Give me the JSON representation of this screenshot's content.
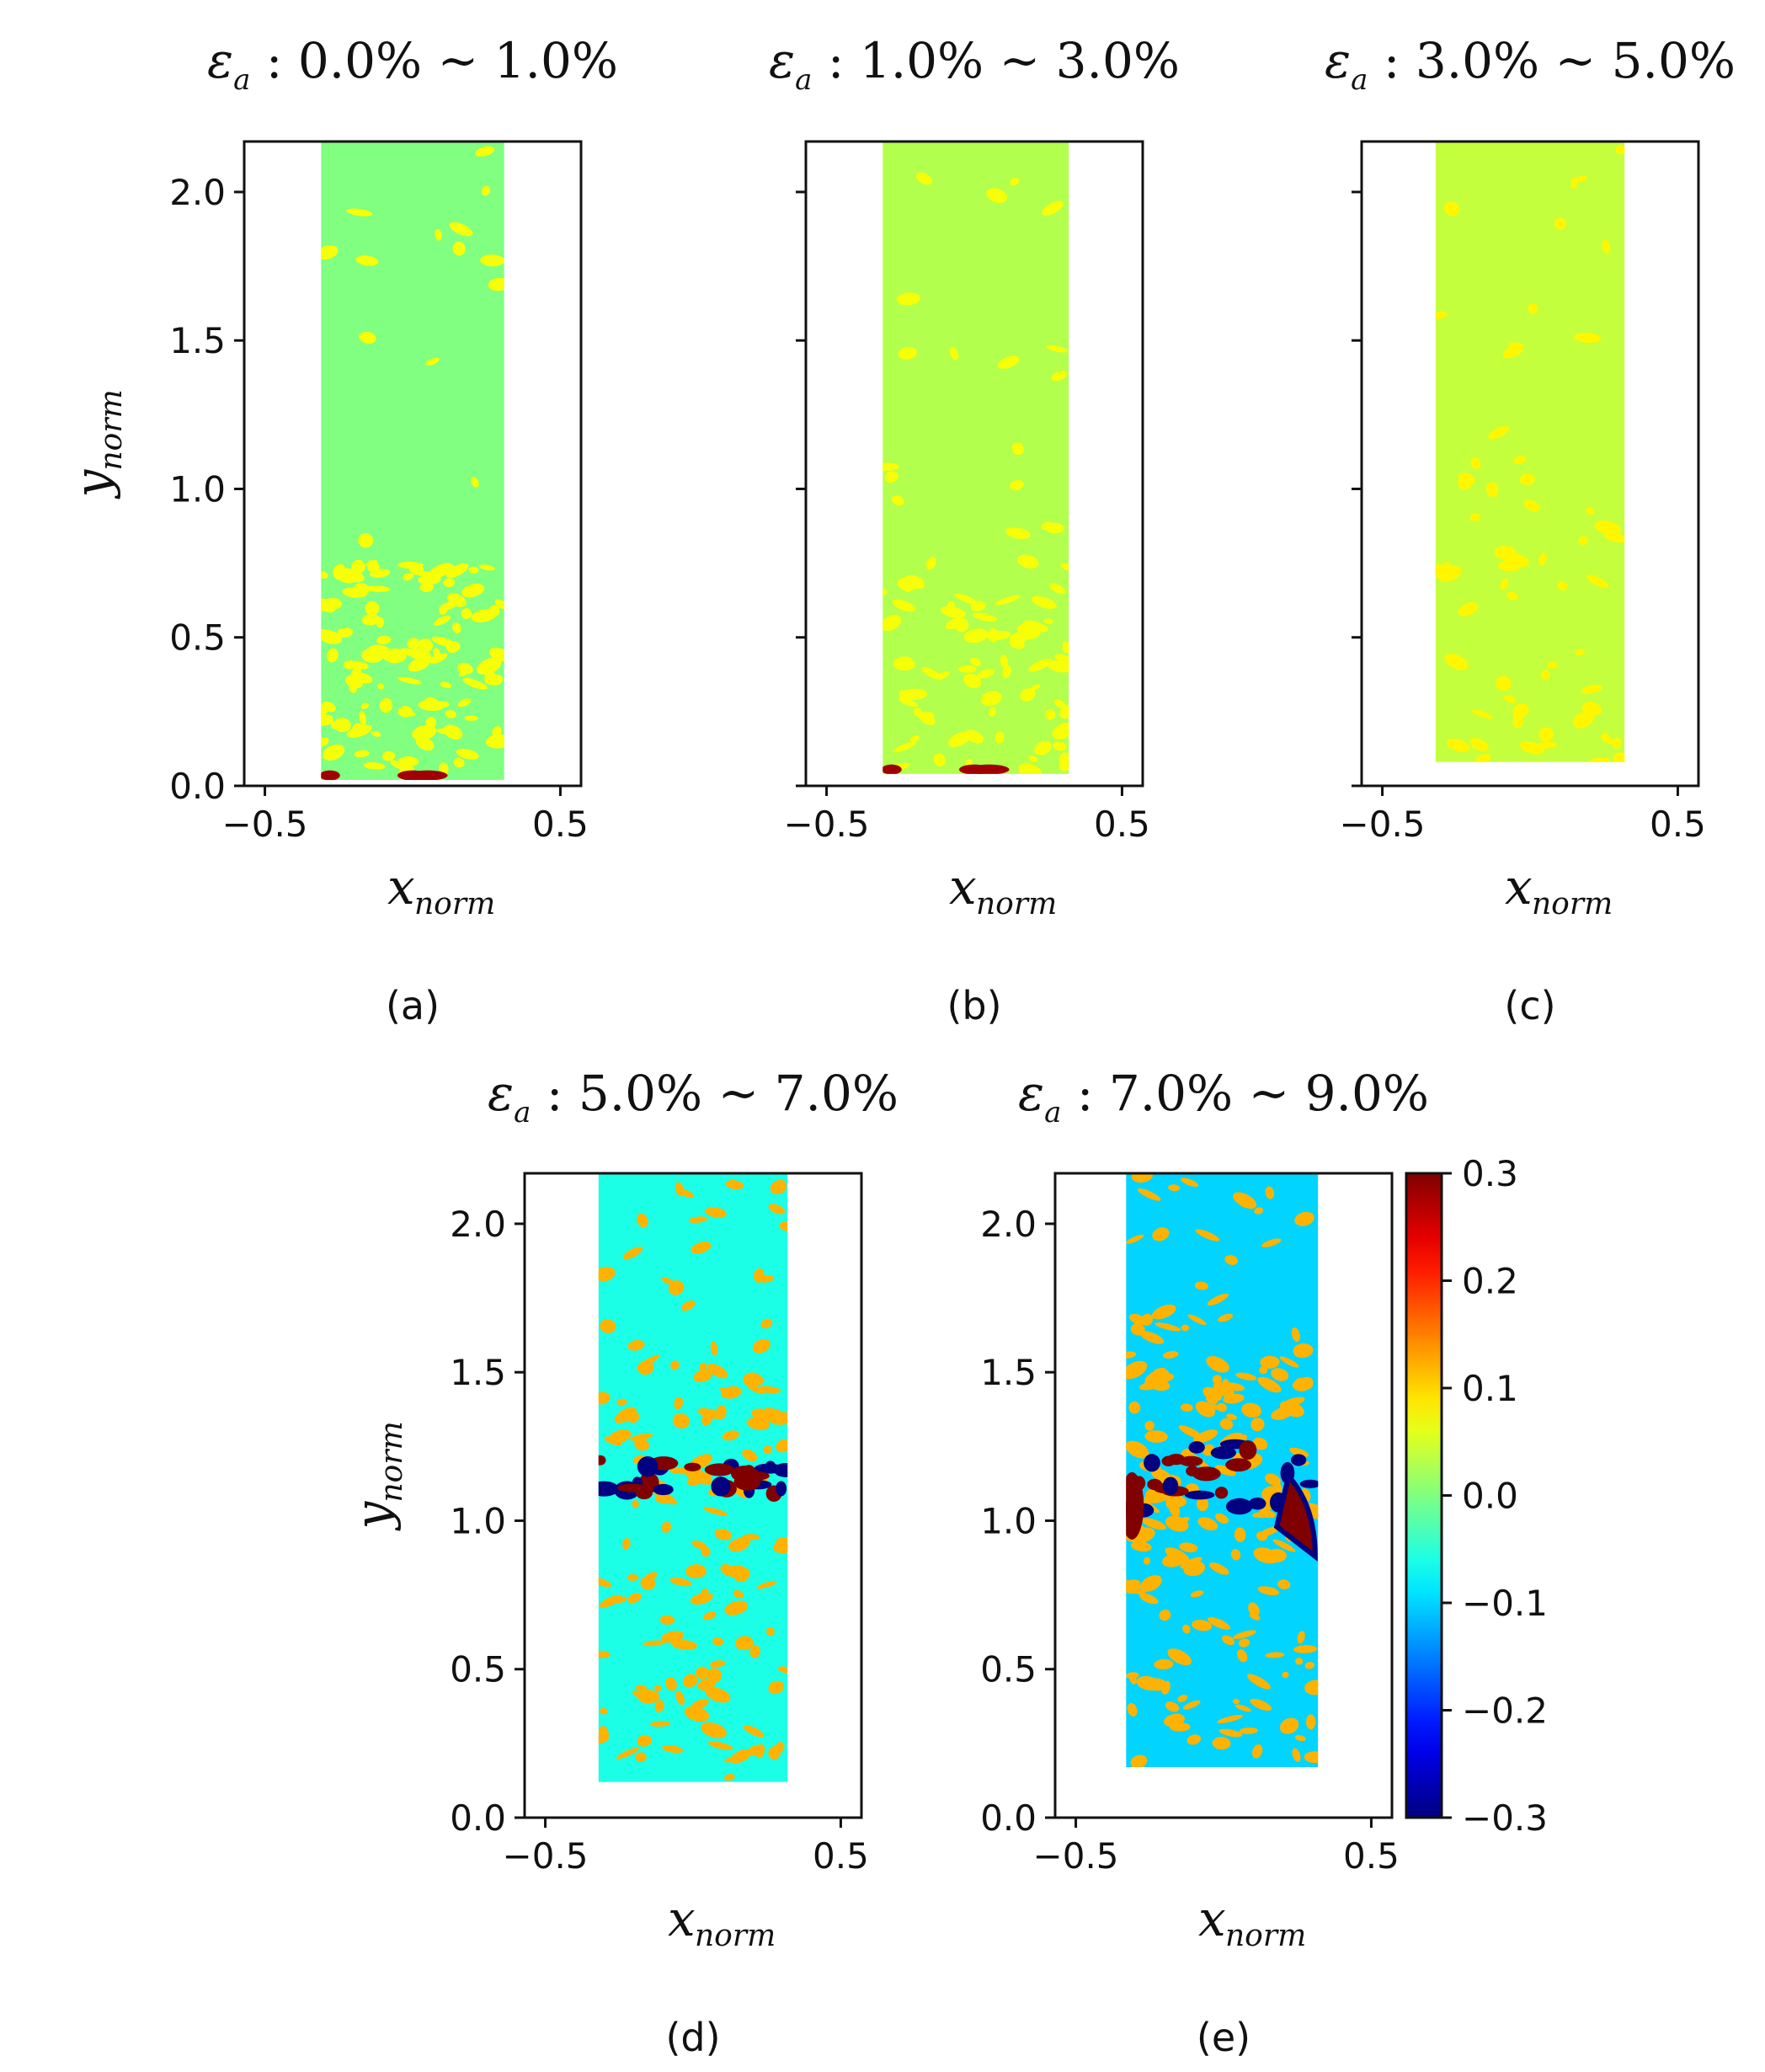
{
  "chart_data": {
    "type": "heatmap",
    "description_unit": "normalized coordinates",
    "color_scale": {
      "colormap": "jet",
      "min": -0.3,
      "max": 0.3,
      "ticks": [
        "0.3",
        "0.2",
        "0.1",
        "0.0",
        "−0.1",
        "−0.2",
        "−0.3"
      ],
      "tick_values": [
        0.3,
        0.2,
        0.1,
        0.0,
        -0.1,
        -0.2,
        -0.3
      ]
    },
    "x_ticks": [
      "−0.5",
      "0.5"
    ],
    "x_tick_values": [
      -0.5,
      0.5
    ],
    "y_ticks": [
      "0.0",
      "0.5",
      "1.0",
      "1.5",
      "2.0"
    ],
    "y_tick_values": [
      0.0,
      0.5,
      1.0,
      1.5,
      2.0
    ],
    "xlim": [
      -0.57,
      0.57
    ],
    "ylim": [
      0.0,
      2.17
    ],
    "xlabel_main": "x",
    "xlabel_sub": "norm",
    "ylabel_main": "y",
    "ylabel_sub": "norm",
    "title_symbol": "ε",
    "title_symbol_sub": "a",
    "panels": [
      {
        "caption": "(a)",
        "title_range": ": 0.0% ~ 1.0%",
        "show_ylabel": true,
        "show_yticklabels": true,
        "specimen": {
          "x_left": -0.31,
          "x_right": 0.31,
          "y_bottom": 0.02,
          "y_top": 2.17
        },
        "base_value": 0.0,
        "speckle_value": 0.07,
        "speckle_density": [
          0.05,
          0.02,
          0.7
        ],
        "band": null
      },
      {
        "caption": "(b)",
        "title_range": ": 1.0% ~ 3.0%",
        "show_ylabel": false,
        "show_yticklabels": false,
        "specimen": {
          "x_left": -0.31,
          "x_right": 0.32,
          "y_bottom": 0.04,
          "y_top": 2.17
        },
        "base_value": 0.03,
        "speckle_value": 0.07,
        "speckle_density": [
          0.08,
          0.05,
          0.5
        ],
        "band": null
      },
      {
        "caption": "(c)",
        "title_range": ": 3.0% ~ 5.0%",
        "show_ylabel": false,
        "show_yticklabels": false,
        "specimen": {
          "x_left": -0.32,
          "x_right": 0.32,
          "y_bottom": 0.08,
          "y_top": 2.17
        },
        "base_value": 0.04,
        "speckle_value": 0.08,
        "speckle_density": [
          0.1,
          0.08,
          0.3
        ],
        "band": null
      },
      {
        "caption": "(d)",
        "title_range": ": 5.0% ~ 7.0%",
        "show_ylabel": true,
        "show_yticklabels": true,
        "specimen": {
          "x_left": -0.32,
          "x_right": 0.32,
          "y_bottom": 0.12,
          "y_top": 2.17
        },
        "base_value": -0.06,
        "speckle_value": 0.12,
        "speckle_density": [
          0.15,
          0.5,
          0.45
        ],
        "band": {
          "y_center": 1.15,
          "half_width": 0.06,
          "hot_value": 0.3,
          "cold_value": -0.3
        }
      },
      {
        "caption": "(e)",
        "title_range": ": 7.0% ~ 9.0%",
        "show_ylabel": false,
        "show_yticklabels": true,
        "specimen": {
          "x_left": -0.33,
          "x_right": 0.32,
          "y_bottom": 0.17,
          "y_top": 2.17
        },
        "base_value": -0.1,
        "speckle_value": 0.12,
        "speckle_density": [
          0.2,
          0.6,
          0.4
        ],
        "band": {
          "y_center": 1.15,
          "half_width": 0.12,
          "hot_value": 0.3,
          "cold_value": -0.3
        }
      }
    ]
  }
}
